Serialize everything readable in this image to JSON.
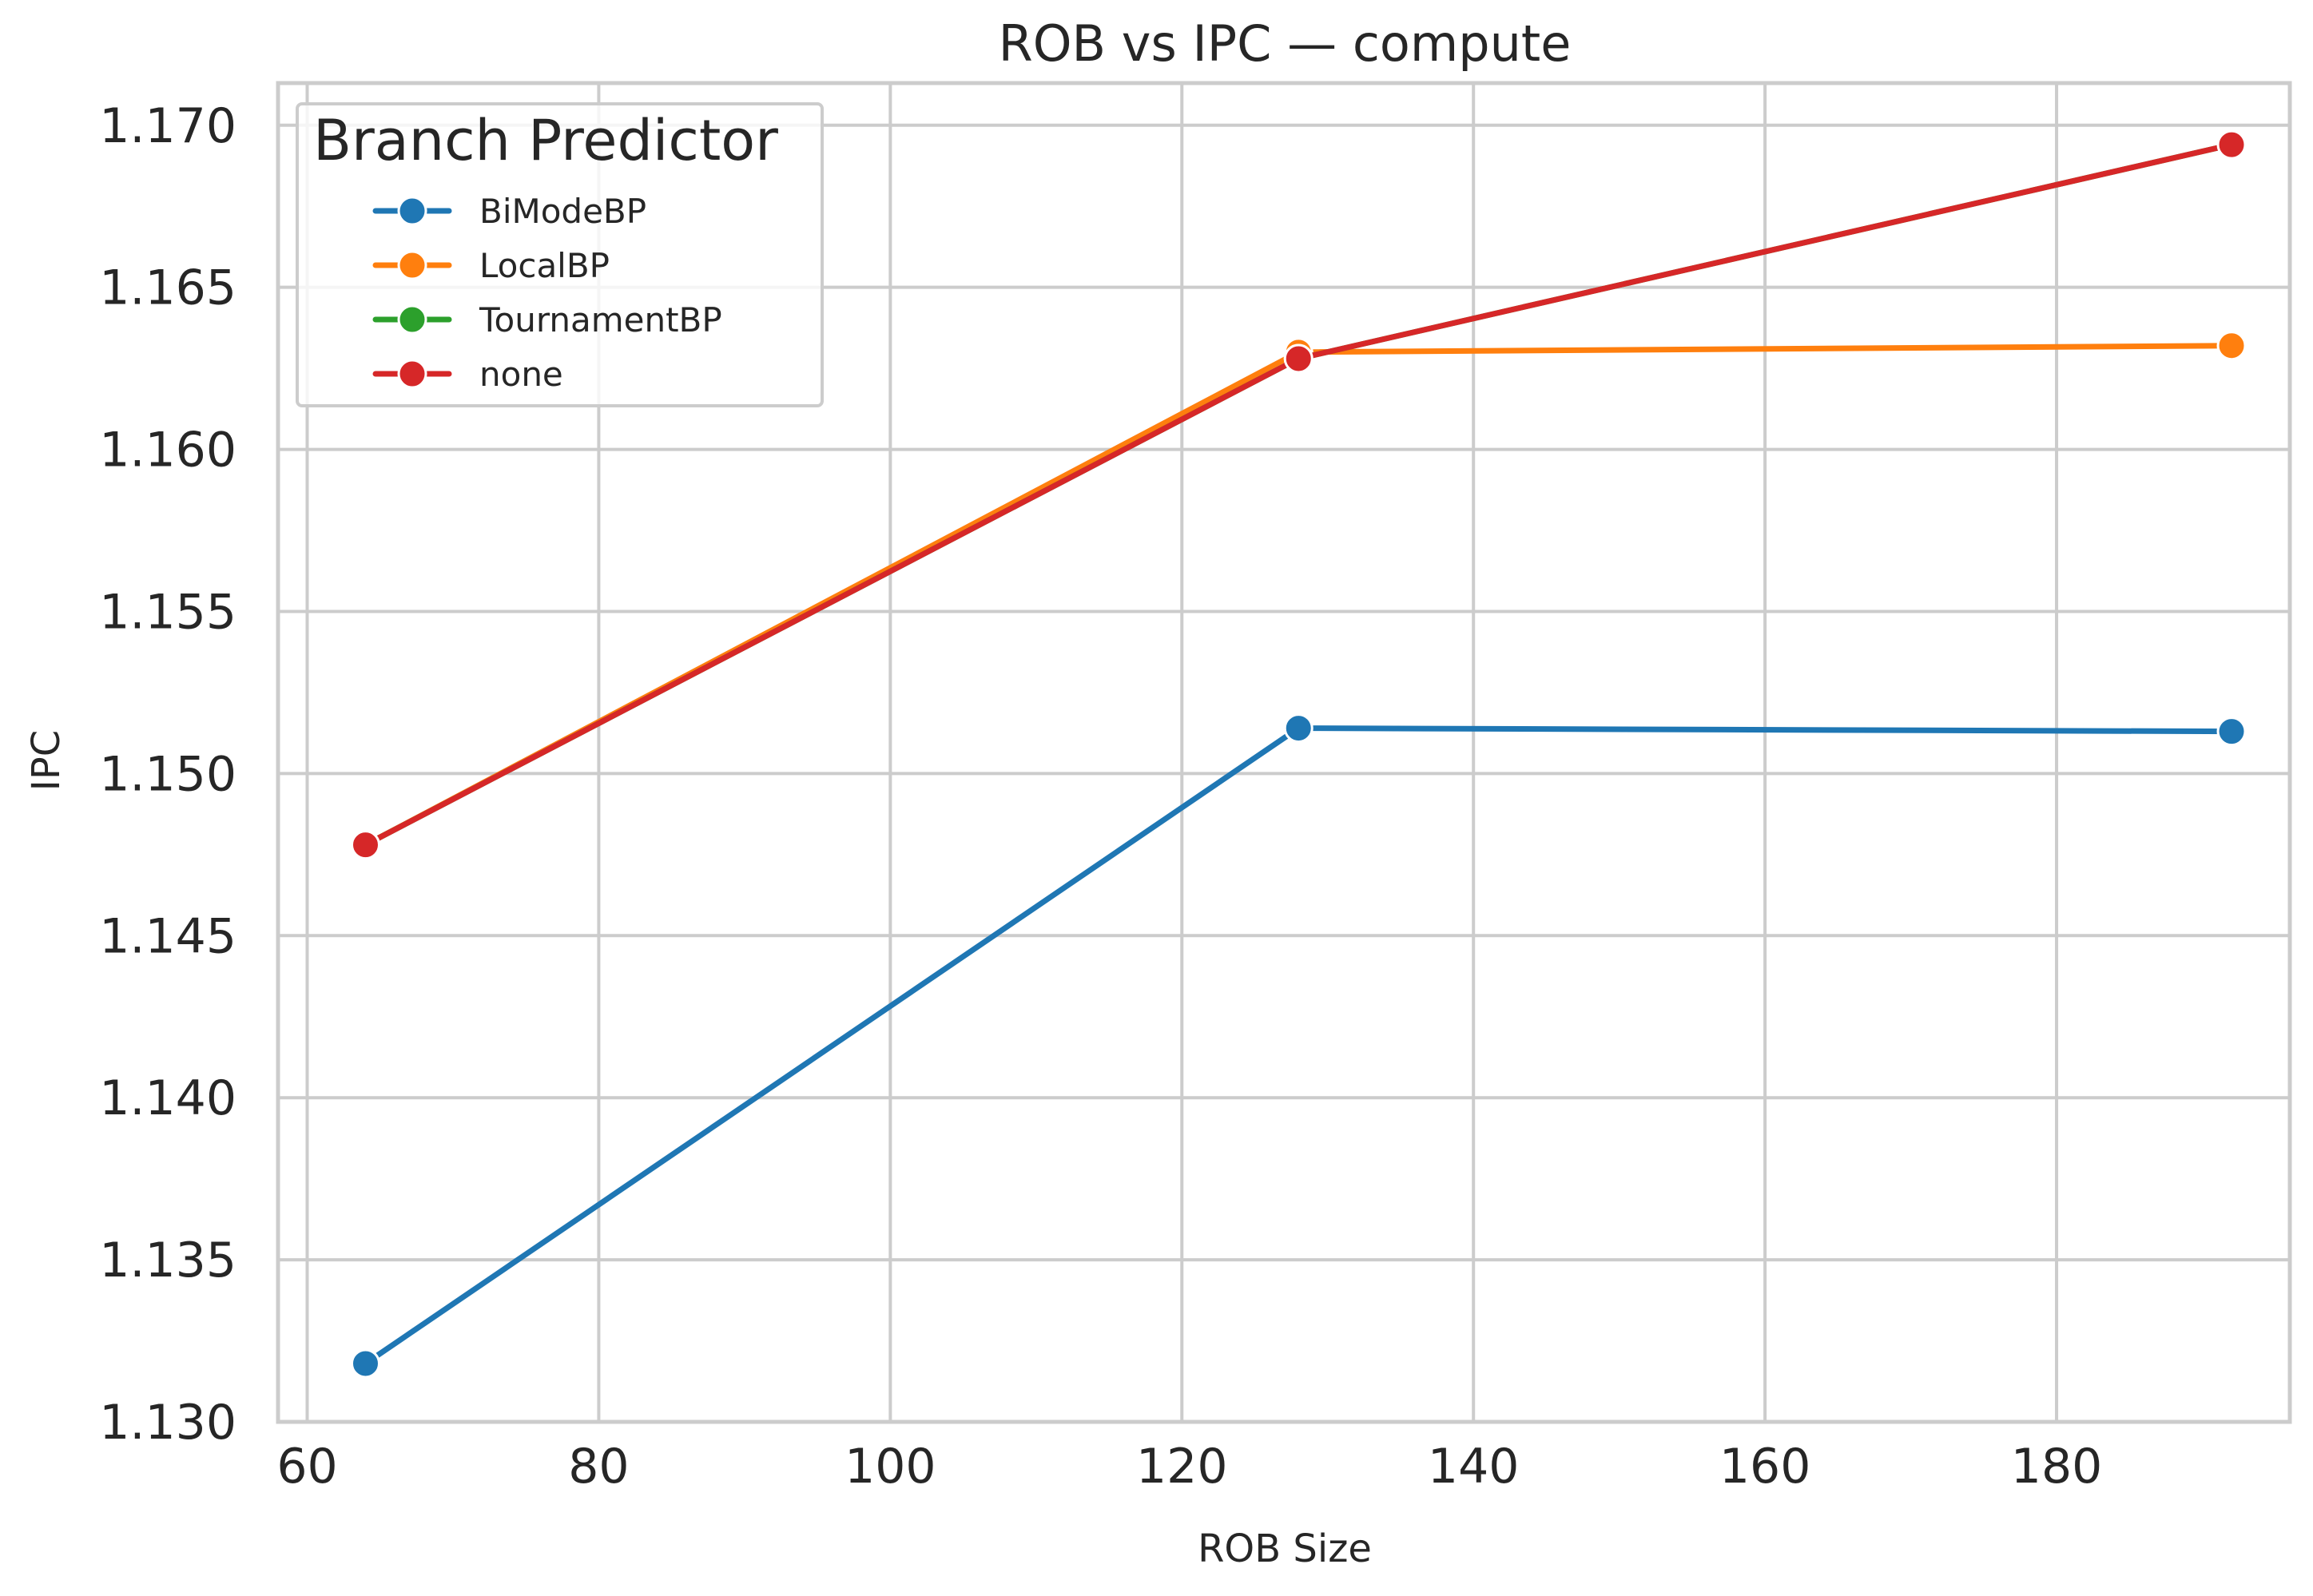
{
  "chart_data": {
    "type": "line",
    "title": "ROB vs IPC — compute",
    "xlabel": "ROB Size",
    "ylabel": "IPC",
    "xlim": [
      58,
      196
    ],
    "ylim": [
      1.13,
      1.1713
    ],
    "xticks": [
      60,
      80,
      100,
      120,
      140,
      160,
      180
    ],
    "yticks": [
      1.13,
      1.135,
      1.14,
      1.145,
      1.15,
      1.155,
      1.16,
      1.165,
      1.17
    ],
    "ytick_labels": [
      "1.130",
      "1.135",
      "1.140",
      "1.145",
      "1.150",
      "1.155",
      "1.160",
      "1.165",
      "1.170"
    ],
    "grid": true,
    "legend": {
      "title": "Branch Predictor",
      "position": "top-left"
    },
    "x": [
      64,
      128,
      192
    ],
    "series": [
      {
        "name": "BiModeBP",
        "color": "#1f77b4",
        "values": [
          1.1318,
          1.1514,
          1.1513
        ]
      },
      {
        "name": "LocalBP",
        "color": "#ff7f0e",
        "values": [
          1.1478,
          1.163,
          1.1632
        ]
      },
      {
        "name": "TournamentBP",
        "color": "#2ca02c",
        "values": [
          1.1478,
          1.1628,
          1.1694
        ]
      },
      {
        "name": "none",
        "color": "#d62728",
        "values": [
          1.1478,
          1.1628,
          1.1694
        ]
      }
    ]
  }
}
